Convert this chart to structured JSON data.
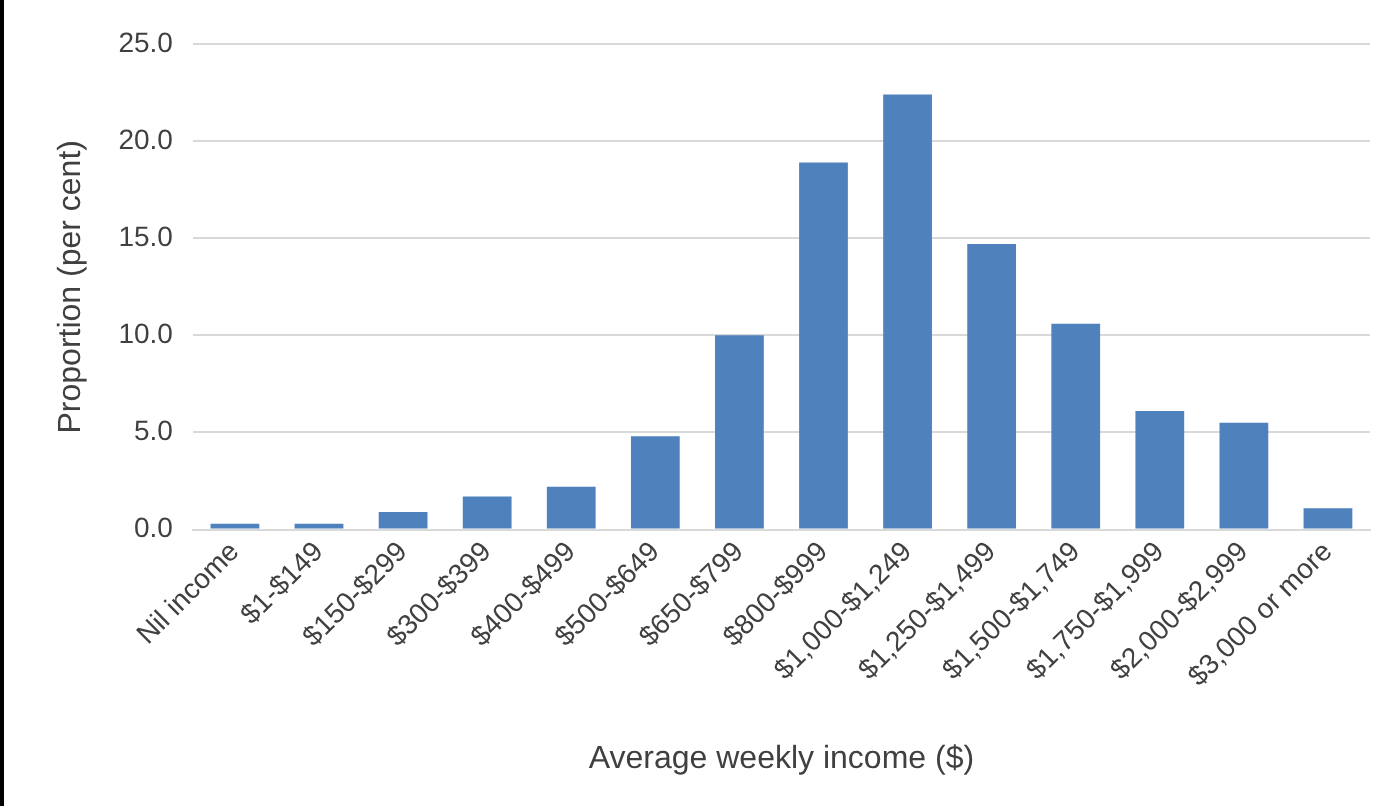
{
  "chart_data": {
    "type": "bar",
    "xlabel": "Average weekly income ($)",
    "ylabel": "Proportion (per cent)",
    "categories": [
      "Nil income",
      "$1-$149",
      "$150-$299",
      "$300-$399",
      "$400-$499",
      "$500-$649",
      "$650-$799",
      "$800-$999",
      "$1,000-$1,249",
      "$1,250-$1,499",
      "$1,500-$1,749",
      "$1,750-$1,999",
      "$2,000-$2,999",
      "$3,000 or more"
    ],
    "values": [
      0.3,
      0.3,
      0.9,
      1.7,
      2.2,
      4.8,
      10.0,
      18.9,
      22.4,
      14.7,
      10.6,
      6.1,
      5.5,
      1.1
    ],
    "color": "#4f81bd",
    "ylim": [
      0,
      25
    ],
    "yticks": [
      {
        "value": 0,
        "label": "0.0"
      },
      {
        "value": 5,
        "label": "5.0"
      },
      {
        "value": 10,
        "label": "10.0"
      },
      {
        "value": 15,
        "label": "15.0"
      },
      {
        "value": 20,
        "label": "20.0"
      },
      {
        "value": 25,
        "label": "25.0"
      }
    ],
    "grid": "y",
    "legend": false
  }
}
